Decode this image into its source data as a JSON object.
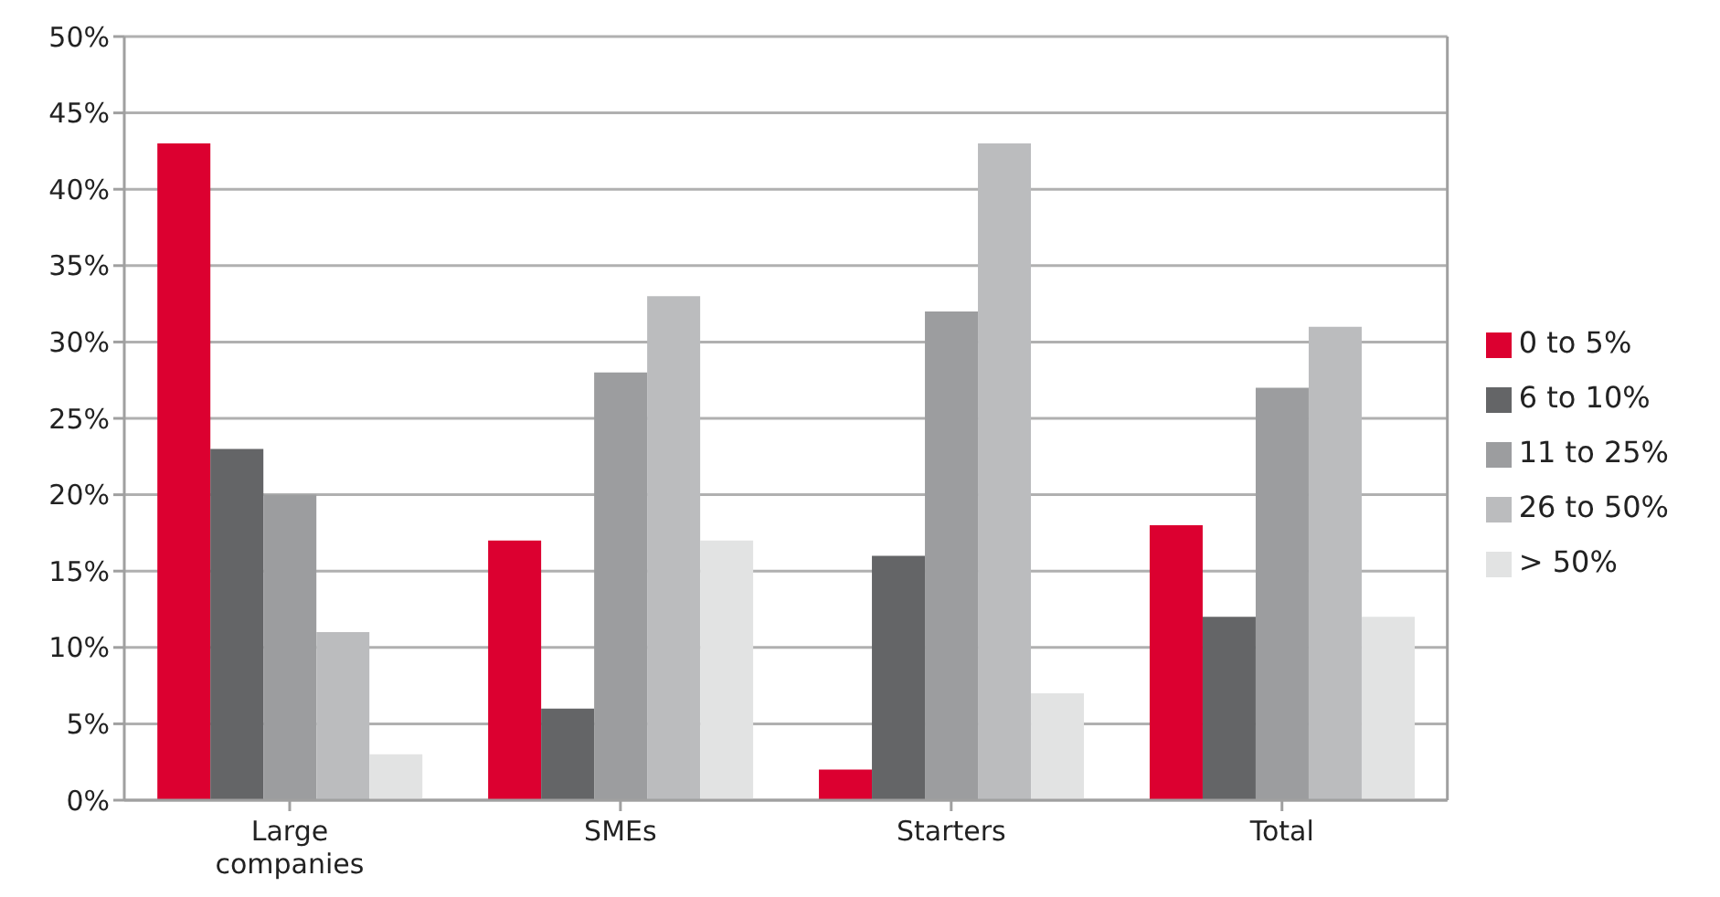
{
  "chart_data": {
    "type": "bar",
    "categories": [
      "Large companies",
      "SMEs",
      "Starters",
      "Total"
    ],
    "series": [
      {
        "name": "0 to 5%",
        "color": "#dc0030",
        "values": [
          43,
          17,
          2,
          18
        ]
      },
      {
        "name": "6 to 10%",
        "color": "#646567",
        "values": [
          23,
          6,
          16,
          12
        ]
      },
      {
        "name": "11 to 25%",
        "color": "#9c9d9f",
        "values": [
          20,
          28,
          32,
          27
        ]
      },
      {
        "name": "26 to 50%",
        "color": "#bbbcbe",
        "values": [
          11,
          33,
          43,
          31
        ]
      },
      {
        "name": "> 50%",
        "color": "#e2e3e3",
        "values": [
          3,
          17,
          7,
          12
        ]
      }
    ],
    "ylim": [
      0,
      50
    ],
    "yticks": [
      {
        "value": 0,
        "label": "0%"
      },
      {
        "value": 5,
        "label": "5%"
      },
      {
        "value": 10,
        "label": "10%"
      },
      {
        "value": 15,
        "label": "15%"
      },
      {
        "value": 20,
        "label": "20%"
      },
      {
        "value": 25,
        "label": "25%"
      },
      {
        "value": 30,
        "label": "30%"
      },
      {
        "value": 35,
        "label": "35%"
      },
      {
        "value": 40,
        "label": "40%"
      },
      {
        "value": 45,
        "label": "45%"
      },
      {
        "value": 50,
        "label": "50%"
      }
    ],
    "grid": "y",
    "legend": "right"
  }
}
